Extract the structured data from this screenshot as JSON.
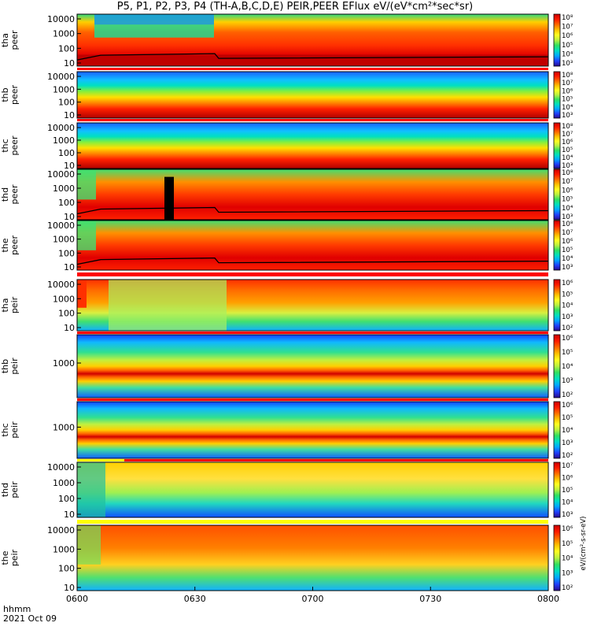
{
  "title": "P5, P1, P2, P3, P4 (TH-A,B,C,D,E) PEIR,PEER EFlux eV/(eV*cm²*sec*sr)",
  "footer": {
    "time_label": "hhmm",
    "date_label": "2021 Oct 09"
  },
  "colorbar_label": "eV/(cm²-s-sr-eV)",
  "colors": {
    "spectrogram_scale": [
      "#2a0a8a",
      "#2040ff",
      "#00a8ff",
      "#00e0c0",
      "#30e060",
      "#b8f040",
      "#ffff20",
      "#ffc000",
      "#ff6a00",
      "#ff1a00",
      "#cc0000"
    ]
  },
  "chart_data": {
    "type": "heatmap",
    "x_axis": {
      "ticks": [
        "0600",
        "0630",
        "0700",
        "0730",
        "0800"
      ],
      "range": [
        "06:00",
        "08:00"
      ]
    },
    "panels": [
      {
        "probe": "tha",
        "instrument": "peer",
        "y_ticks": [
          "10000",
          "1000",
          "100",
          "10"
        ],
        "colorbar_ticks": [
          "10⁸",
          "10⁷",
          "10⁶",
          "10⁵",
          "10⁴",
          "10³"
        ],
        "log_scale": true
      },
      {
        "probe": "thb",
        "instrument": "peer",
        "y_ticks": [
          "10000",
          "1000",
          "100",
          "10"
        ],
        "colorbar_ticks": [
          "10⁸",
          "10⁷",
          "10⁶",
          "10⁵",
          "10⁴",
          "10³"
        ],
        "log_scale": true
      },
      {
        "probe": "thc",
        "instrument": "peer",
        "y_ticks": [
          "10000",
          "1000",
          "100",
          "10"
        ],
        "colorbar_ticks": [
          "10⁸",
          "10⁷",
          "10⁶",
          "10⁵",
          "10⁴",
          "10³"
        ],
        "log_scale": true
      },
      {
        "probe": "thd",
        "instrument": "peer",
        "y_ticks": [
          "10000",
          "1000",
          "100",
          "10"
        ],
        "colorbar_ticks": [
          "10⁸",
          "10⁷",
          "10⁶",
          "10⁵",
          "10⁴",
          "10³"
        ],
        "log_scale": true
      },
      {
        "probe": "the",
        "instrument": "peer",
        "y_ticks": [
          "10000",
          "1000",
          "100",
          "10"
        ],
        "colorbar_ticks": [
          "10⁸",
          "10⁷",
          "10⁶",
          "10⁵",
          "10⁴",
          "10³"
        ],
        "log_scale": true
      },
      {
        "probe": "tha",
        "instrument": "peir",
        "y_ticks": [
          "10000",
          "1000",
          "100",
          "10"
        ],
        "colorbar_ticks": [
          "10⁶",
          "10⁵",
          "10⁴",
          "10³",
          "10²"
        ],
        "log_scale": true
      },
      {
        "probe": "thb",
        "instrument": "peir",
        "y_ticks": [
          "1000"
        ],
        "colorbar_ticks": [
          "10⁶",
          "10⁵",
          "10⁴",
          "10³",
          "10²"
        ],
        "log_scale": true
      },
      {
        "probe": "thc",
        "instrument": "peir",
        "y_ticks": [
          "1000"
        ],
        "colorbar_ticks": [
          "10⁶",
          "10⁵",
          "10⁴",
          "10³",
          "10²"
        ],
        "log_scale": true
      },
      {
        "probe": "thd",
        "instrument": "peir",
        "y_ticks": [
          "10000",
          "1000",
          "100",
          "10"
        ],
        "colorbar_ticks": [
          "10⁷",
          "10⁶",
          "10⁵",
          "10⁴",
          "10³"
        ],
        "log_scale": true
      },
      {
        "probe": "the",
        "instrument": "peir",
        "y_ticks": [
          "10000",
          "1000",
          "100",
          "10"
        ],
        "colorbar_ticks": [
          "10⁶",
          "10⁵",
          "10⁴",
          "10³",
          "10²"
        ],
        "log_scale": true
      }
    ]
  }
}
